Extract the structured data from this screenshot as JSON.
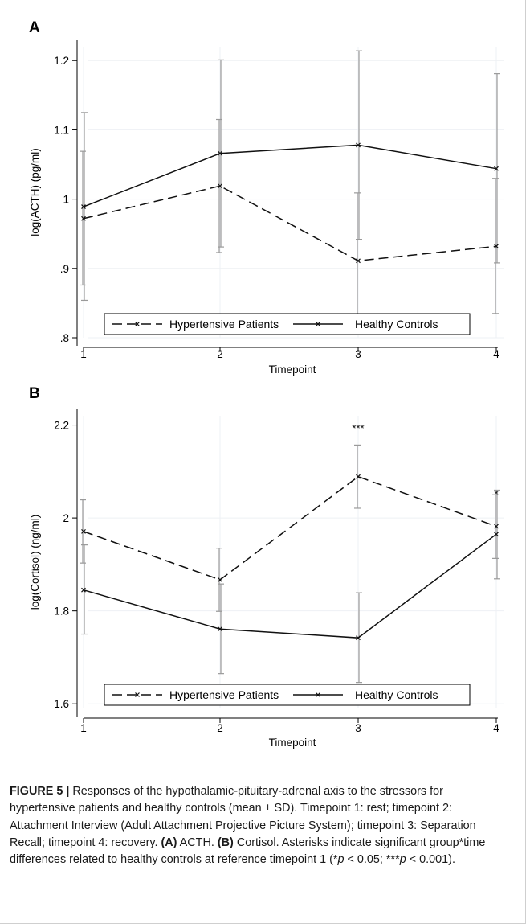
{
  "chart_data": [
    {
      "panel": "A",
      "type": "line",
      "ylabel": "log(ACTH) (pg/ml)",
      "xlabel": "Timepoint",
      "x": [
        1,
        2,
        3,
        4
      ],
      "xticks": [
        "1",
        "2",
        "3",
        "4"
      ],
      "ylim": [
        0.8,
        1.22
      ],
      "yticks": [
        0.8,
        0.9,
        1.0,
        1.1,
        1.2
      ],
      "ytick_labels": [
        ".8",
        ".9",
        "1",
        "1.1",
        "1.2"
      ],
      "grid": true,
      "legend": "bottom",
      "series": [
        {
          "name": "Hypertensive Patients",
          "style": "dashed",
          "values": [
            0.972,
            1.019,
            0.911,
            0.932
          ],
          "err_low": [
            0.876,
            0.923,
            0.81,
            0.835
          ],
          "err_high": [
            1.069,
            1.115,
            1.009,
            1.03
          ]
        },
        {
          "name": "Healthy Controls",
          "style": "solid",
          "values": [
            0.989,
            1.066,
            1.078,
            1.044
          ],
          "err_low": [
            0.854,
            0.931,
            0.942,
            0.908
          ],
          "err_high": [
            1.125,
            1.201,
            1.214,
            1.181
          ]
        }
      ]
    },
    {
      "panel": "B",
      "type": "line",
      "ylabel": "log(Cortisol) (ng/ml)",
      "xlabel": "Timepoint",
      "x": [
        1,
        2,
        3,
        4
      ],
      "xticks": [
        "1",
        "2",
        "3",
        "4"
      ],
      "ylim": [
        1.59,
        2.22
      ],
      "yticks": [
        1.6,
        1.8,
        2.0,
        2.2
      ],
      "ytick_labels": [
        "1.6",
        "1.8",
        "2",
        "2.2"
      ],
      "grid": true,
      "legend": "bottom",
      "annotations": [
        {
          "x": 3,
          "y": 2.2,
          "text": "***"
        },
        {
          "x": 4,
          "y": 2.1,
          "text": "*"
        }
      ],
      "series": [
        {
          "name": "Hypertensive Patients",
          "style": "dashed",
          "values": [
            1.971,
            1.867,
            2.089,
            1.982
          ],
          "err_low": [
            1.903,
            1.799,
            2.021,
            1.913
          ],
          "err_high": [
            2.039,
            1.935,
            2.157,
            2.05
          ]
        },
        {
          "name": "Healthy Controls",
          "style": "solid",
          "values": [
            1.845,
            1.761,
            1.742,
            1.965
          ],
          "err_low": [
            1.75,
            1.665,
            1.646,
            1.869
          ],
          "err_high": [
            1.942,
            1.858,
            1.839,
            2.06
          ]
        }
      ]
    }
  ],
  "caption": {
    "label": "FIGURE 5 |",
    "p1": " Responses of the hypothalamic-pituitary-adrenal axis to the stressors for hypertensive patients and healthy controls (mean ± SD). Timepoint 1: rest; timepoint 2: Attachment Interview (Adult Attachment Projective Picture System); timepoint 3: Separation Recall; timepoint 4: recovery. ",
    "a_label": "(A)",
    "a_text": " ACTH. ",
    "b_label": "(B)",
    "b_text": " Cortisol. Asterisks indicate significant group*time differences related to healthy controls at reference timepoint 1 (*",
    "p_symbol": "p",
    "p_mid": " < 0.05; ***",
    "p_end": " < 0.001)."
  }
}
